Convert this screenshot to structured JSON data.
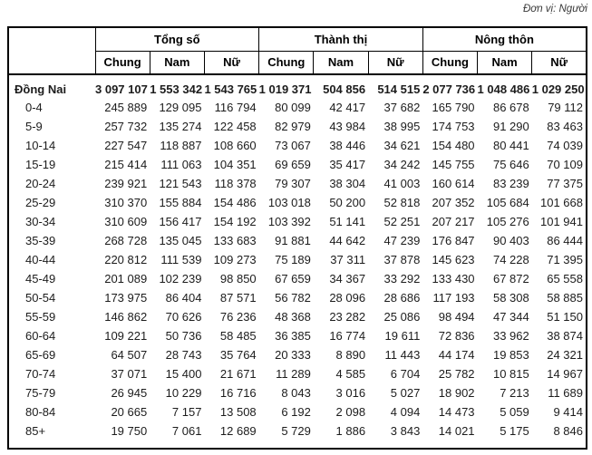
{
  "unit_label": "Đơn vị: Người",
  "table": {
    "title_region": "Đồng Nai",
    "column_groups": [
      {
        "label": "Tổng số",
        "columns": [
          "Chung",
          "Nam",
          "Nữ"
        ]
      },
      {
        "label": "Thành thị",
        "columns": [
          "Chung",
          "Nam",
          "Nữ"
        ]
      },
      {
        "label": "Nông thôn",
        "columns": [
          "Chung",
          "Nam",
          "Nữ"
        ]
      }
    ],
    "rows": [
      {
        "label": "Đồng Nai",
        "bold": true,
        "values": [
          "3 097 107",
          "1 553 342",
          "1 543 765",
          "1 019 371",
          "504 856",
          "514 515",
          "2 077 736",
          "1 048 486",
          "1 029 250"
        ]
      },
      {
        "label": "0-4",
        "bold": false,
        "values": [
          "245 889",
          "129 095",
          "116 794",
          "80 099",
          "42 417",
          "37 682",
          "165 790",
          "86 678",
          "79 112"
        ]
      },
      {
        "label": "5-9",
        "bold": false,
        "values": [
          "257 732",
          "135 274",
          "122 458",
          "82 979",
          "43 984",
          "38 995",
          "174 753",
          "91 290",
          "83 463"
        ]
      },
      {
        "label": "10-14",
        "bold": false,
        "values": [
          "227 547",
          "118 887",
          "108 660",
          "73 067",
          "38 446",
          "34 621",
          "154 480",
          "80 441",
          "74 039"
        ]
      },
      {
        "label": "15-19",
        "bold": false,
        "values": [
          "215 414",
          "111 063",
          "104 351",
          "69 659",
          "35 417",
          "34 242",
          "145 755",
          "75 646",
          "70 109"
        ]
      },
      {
        "label": "20-24",
        "bold": false,
        "values": [
          "239 921",
          "121 543",
          "118 378",
          "79 307",
          "38 304",
          "41 003",
          "160 614",
          "83 239",
          "77 375"
        ]
      },
      {
        "label": "25-29",
        "bold": false,
        "values": [
          "310 370",
          "155 884",
          "154 486",
          "103 018",
          "50 200",
          "52 818",
          "207 352",
          "105 684",
          "101 668"
        ]
      },
      {
        "label": "30-34",
        "bold": false,
        "values": [
          "310 609",
          "156 417",
          "154 192",
          "103 392",
          "51 141",
          "52 251",
          "207 217",
          "105 276",
          "101 941"
        ]
      },
      {
        "label": "35-39",
        "bold": false,
        "values": [
          "268 728",
          "135 045",
          "133 683",
          "91 881",
          "44 642",
          "47 239",
          "176 847",
          "90 403",
          "86 444"
        ]
      },
      {
        "label": "40-44",
        "bold": false,
        "values": [
          "220 812",
          "111 539",
          "109 273",
          "75 189",
          "37 311",
          "37 878",
          "145 623",
          "74 228",
          "71 395"
        ]
      },
      {
        "label": "45-49",
        "bold": false,
        "values": [
          "201 089",
          "102 239",
          "98 850",
          "67 659",
          "34 367",
          "33 292",
          "133 430",
          "67 872",
          "65 558"
        ]
      },
      {
        "label": "50-54",
        "bold": false,
        "values": [
          "173 975",
          "86 404",
          "87 571",
          "56 782",
          "28 096",
          "28 686",
          "117 193",
          "58 308",
          "58 885"
        ]
      },
      {
        "label": "55-59",
        "bold": false,
        "values": [
          "146 862",
          "70 626",
          "76 236",
          "48 368",
          "23 282",
          "25 086",
          "98 494",
          "47 344",
          "51 150"
        ]
      },
      {
        "label": "60-64",
        "bold": false,
        "values": [
          "109 221",
          "50 736",
          "58 485",
          "36 385",
          "16 774",
          "19 611",
          "72 836",
          "33 962",
          "38 874"
        ]
      },
      {
        "label": "65-69",
        "bold": false,
        "values": [
          "64 507",
          "28 743",
          "35 764",
          "20 333",
          "8 890",
          "11 443",
          "44 174",
          "19 853",
          "24 321"
        ]
      },
      {
        "label": "70-74",
        "bold": false,
        "values": [
          "37 071",
          "15 400",
          "21 671",
          "11 289",
          "4 585",
          "6 704",
          "25 782",
          "10 815",
          "14 967"
        ]
      },
      {
        "label": "75-79",
        "bold": false,
        "values": [
          "26 945",
          "10 229",
          "16 716",
          "8 043",
          "3 016",
          "5 027",
          "18 902",
          "7 213",
          "11 689"
        ]
      },
      {
        "label": "80-84",
        "bold": false,
        "values": [
          "20 665",
          "7 157",
          "13 508",
          "6 192",
          "2 098",
          "4 094",
          "14 473",
          "5 059",
          "9 414"
        ]
      },
      {
        "label": "85+",
        "bold": false,
        "values": [
          "19 750",
          "7 061",
          "12 689",
          "5 729",
          "1 886",
          "3 843",
          "14 021",
          "5 175",
          "8 846"
        ]
      }
    ]
  }
}
